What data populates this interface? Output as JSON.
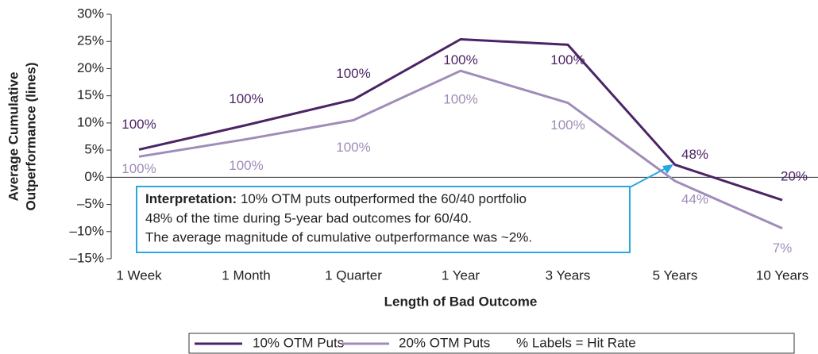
{
  "chart_data": {
    "type": "line",
    "y_axis_label": [
      "Average Cumulative",
      "Outperformance (lines)"
    ],
    "x_axis_label": "Length of Bad Outcome",
    "categories": [
      "1 Week",
      "1 Month",
      "1 Quarter",
      "1 Year",
      "3 Years",
      "5 Years",
      "10 Years"
    ],
    "series": [
      {
        "name": "10% OTM Puts",
        "color": "#4b2466",
        "values": [
          5.1,
          9.6,
          14.3,
          25.4,
          24.4,
          2.3,
          -4.2
        ],
        "hit_rate_labels": [
          "100%",
          "100%",
          "100%",
          "100%",
          "100%",
          "48%",
          "20%"
        ]
      },
      {
        "name": "20% OTM Puts",
        "color": "#a08cb8",
        "values": [
          3.8,
          7.0,
          10.5,
          19.6,
          13.7,
          -0.7,
          -9.4
        ],
        "hit_rate_labels": [
          "100%",
          "100%",
          "100%",
          "100%",
          "100%",
          "44%",
          "7%"
        ]
      }
    ],
    "ylim": [
      -15,
      30
    ],
    "yticks": [
      {
        "value": -15,
        "label": "–15%"
      },
      {
        "value": -10,
        "label": "–10%"
      },
      {
        "value": -5,
        "label": "–5%"
      },
      {
        "value": 0,
        "label": "0%"
      },
      {
        "value": 5,
        "label": "5%"
      },
      {
        "value": 10,
        "label": "10%"
      },
      {
        "value": 15,
        "label": "15%"
      },
      {
        "value": 20,
        "label": "20%"
      },
      {
        "value": 25,
        "label": "25%"
      },
      {
        "value": 30,
        "label": "30%"
      }
    ],
    "legend_note": "% Labels = Hit Rate",
    "annotation": {
      "heading": "Interpretation:",
      "lines": [
        " 10% OTM puts outperformed the 60/40 portfolio",
        "48% of the time during 5-year bad outcomes for 60/40.",
        "The average magnitude of cumulative outperformance was ~2%."
      ]
    }
  }
}
